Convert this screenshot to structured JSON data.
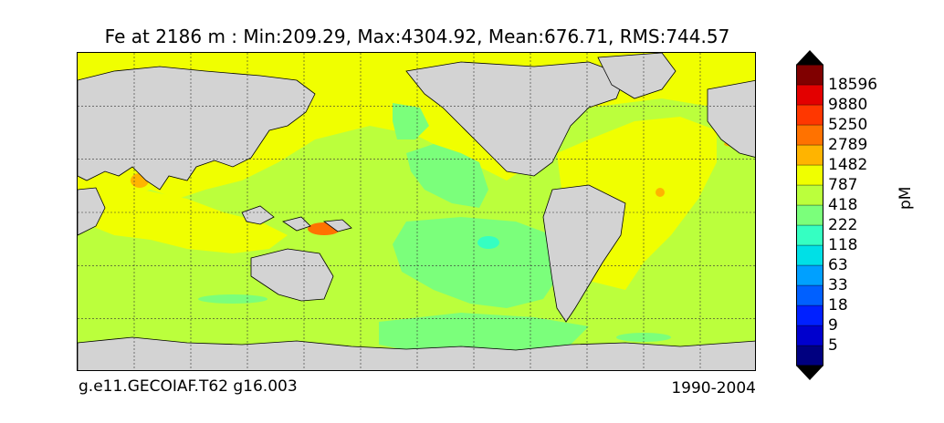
{
  "title": "Fe at 2186 m : Min:209.29, Max:4304.92, Mean:676.71, RMS:744.57",
  "caption_left": "g.e11.GECOIAF.T62 g16.003",
  "caption_right": "1990-2004",
  "colorbar": {
    "unit": "pM",
    "colors": [
      "#000080",
      "#0000cd",
      "#0020ff",
      "#0060ff",
      "#00a0ff",
      "#00e0e6",
      "#35ffc2",
      "#7bff7b",
      "#bbff3c",
      "#f0ff00",
      "#ffb400",
      "#ff7200",
      "#ff3700",
      "#e30000",
      "#800000"
    ],
    "labels": [
      "5",
      "9",
      "18",
      "33",
      "63",
      "118",
      "222",
      "418",
      "787",
      "1482",
      "2789",
      "5250",
      "9880",
      "18596"
    ]
  },
  "map": {
    "land_color": "#d3d3d3",
    "grid_color": "#333333",
    "field_colors": {
      "yellow": "#f0ff00",
      "yellow_green": "#bbff3c",
      "green": "#7bff7b",
      "teal": "#35ffc2",
      "orange": "#ffb400",
      "dark_orange": "#ff7200"
    }
  }
}
